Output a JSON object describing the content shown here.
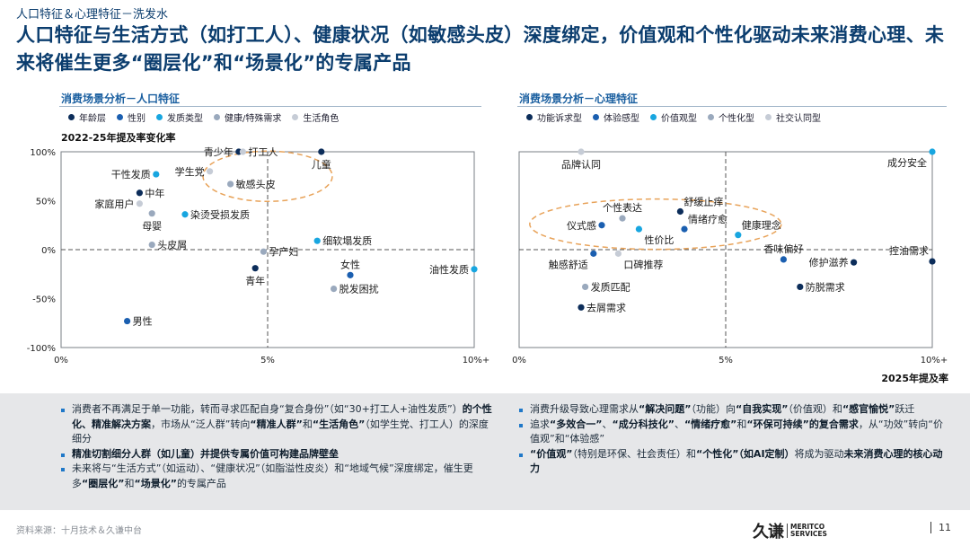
{
  "breadcrumb": "人口特征＆心理特征－洗发水",
  "title": "人口特征与生活方式（如打工人）、健康状况（如敏感头皮）深度绑定，价值观和个性化驱动未来消费心理、未来将催生更多“圈层化”和“场景化”的专属产品",
  "colors": {
    "navy": "#0c2d5a",
    "blue": "#1b5fb0",
    "cyan": "#18a6e0",
    "gray": "#9aa9bd",
    "lightgray": "#c6ccd6",
    "accent": "#e8a35a"
  },
  "chart_data": [
    {
      "type": "scatter",
      "panel_title": "消费场景分析－人口特征",
      "ylabel": "2022-25年提及率变化率",
      "xlabel": "",
      "xlim": [
        0,
        10
      ],
      "ylim": [
        -100,
        100
      ],
      "xticks": [
        "0%",
        "5%",
        "10%+"
      ],
      "yticks": [
        "100%",
        "50%",
        "0%",
        "-50%",
        "-100%"
      ],
      "reference_lines": {
        "x": 5,
        "y": 0
      },
      "legend": [
        {
          "name": "年龄层",
          "color": "navy"
        },
        {
          "name": "性别",
          "color": "blue"
        },
        {
          "name": "发质类型",
          "color": "cyan"
        },
        {
          "name": "健康/特殊需求",
          "color": "gray"
        },
        {
          "name": "生活角色",
          "color": "lightgray"
        }
      ],
      "points": [
        {
          "label": "青少年",
          "x": 4.3,
          "y": 100,
          "series": "年龄层",
          "pos": "left"
        },
        {
          "label": "打工人",
          "x": 4.4,
          "y": 100,
          "series": "生活角色",
          "pos": "right"
        },
        {
          "label": "儿童",
          "x": 6.3,
          "y": 100,
          "series": "年龄层",
          "pos": "below"
        },
        {
          "label": "学生党",
          "x": 3.6,
          "y": 80,
          "series": "生活角色",
          "pos": "left"
        },
        {
          "label": "干性发质",
          "x": 2.3,
          "y": 77,
          "series": "发质类型",
          "pos": "left"
        },
        {
          "label": "敏感头皮",
          "x": 4.1,
          "y": 67,
          "series": "健康/特殊需求",
          "pos": "right"
        },
        {
          "label": "中年",
          "x": 1.9,
          "y": 58,
          "series": "年龄层",
          "pos": "right"
        },
        {
          "label": "家庭用户",
          "x": 1.9,
          "y": 47,
          "series": "生活角色",
          "pos": "left"
        },
        {
          "label": "母婴",
          "x": 2.2,
          "y": 37,
          "series": "健康/特殊需求",
          "pos": "below"
        },
        {
          "label": "染烫受损发质",
          "x": 3.0,
          "y": 36,
          "series": "发质类型",
          "pos": "right"
        },
        {
          "label": "头皮屑",
          "x": 2.2,
          "y": 5,
          "series": "健康/特殊需求",
          "pos": "right"
        },
        {
          "label": "细软塌发质",
          "x": 6.2,
          "y": 9,
          "series": "发质类型",
          "pos": "right"
        },
        {
          "label": "孕产妇",
          "x": 4.9,
          "y": -2,
          "series": "健康/特殊需求",
          "pos": "right"
        },
        {
          "label": "女性",
          "x": 7.0,
          "y": -26,
          "series": "性别",
          "pos": "above"
        },
        {
          "label": "青年",
          "x": 4.7,
          "y": -19,
          "series": "年龄层",
          "pos": "below"
        },
        {
          "label": "油性发质",
          "x": 10.0,
          "y": -20,
          "series": "发质类型",
          "pos": "left"
        },
        {
          "label": "脱发困扰",
          "x": 6.6,
          "y": -40,
          "series": "健康/特殊需求",
          "pos": "right"
        },
        {
          "label": "男性",
          "x": 1.6,
          "y": -73,
          "series": "性别",
          "pos": "right"
        }
      ]
    },
    {
      "type": "scatter",
      "panel_title": "消费场景分析－心理特征",
      "ylabel": "",
      "xlabel": "2025年提及率",
      "xlim": [
        0,
        10
      ],
      "ylim": [
        -100,
        100
      ],
      "xticks": [
        "0%",
        "5%",
        "10%+"
      ],
      "reference_lines": {
        "x": 5,
        "y": 0
      },
      "legend": [
        {
          "name": "功能诉求型",
          "color": "navy"
        },
        {
          "name": "体验感型",
          "color": "blue"
        },
        {
          "name": "价值观型",
          "color": "cyan"
        },
        {
          "name": "个性化型",
          "color": "gray"
        },
        {
          "name": "社交认同型",
          "color": "lightgray"
        }
      ],
      "points": [
        {
          "label": "品牌认同",
          "x": 1.5,
          "y": 100,
          "series": "社交认同型",
          "pos": "below"
        },
        {
          "label": "成分安全",
          "x": 10.0,
          "y": 100,
          "series": "价值观型",
          "pos": "belowleft"
        },
        {
          "label": "个性表达",
          "x": 2.5,
          "y": 32,
          "series": "个性化型",
          "pos": "above"
        },
        {
          "label": "舒缓止痒",
          "x": 3.9,
          "y": 39,
          "series": "功能诉求型",
          "pos": "aboveright"
        },
        {
          "label": "仪式感",
          "x": 2.0,
          "y": 25,
          "series": "体验感型",
          "pos": "left"
        },
        {
          "label": "情绪疗愈",
          "x": 4.0,
          "y": 21,
          "series": "体验感型",
          "pos": "aboveright"
        },
        {
          "label": "性价比",
          "x": 2.9,
          "y": 21,
          "series": "价值观型",
          "pos": "belowright"
        },
        {
          "label": "健康理念",
          "x": 5.3,
          "y": 15,
          "series": "价值观型",
          "pos": "aboveright"
        },
        {
          "label": "香味偏好",
          "x": 6.4,
          "y": -10,
          "series": "体验感型",
          "pos": "above"
        },
        {
          "label": "控油需求",
          "x": 10.0,
          "y": -12,
          "series": "功能诉求型",
          "pos": "aboveleft"
        },
        {
          "label": "触感舒适",
          "x": 1.8,
          "y": -4,
          "series": "体验感型",
          "pos": "belowleft"
        },
        {
          "label": "口碑推荐",
          "x": 2.4,
          "y": -4,
          "series": "社交认同型",
          "pos": "belowright"
        },
        {
          "label": "修护滋养",
          "x": 8.1,
          "y": -13,
          "series": "功能诉求型",
          "pos": "left"
        },
        {
          "label": "防脱需求",
          "x": 6.8,
          "y": -38,
          "series": "功能诉求型",
          "pos": "right"
        },
        {
          "label": "发质匹配",
          "x": 1.6,
          "y": -38,
          "series": "个性化型",
          "pos": "right"
        },
        {
          "label": "去屑需求",
          "x": 1.5,
          "y": -59,
          "series": "功能诉求型",
          "pos": "right"
        }
      ]
    }
  ],
  "bullets_left": [
    [
      {
        "t": "消费者不再满足于单一功能，转而寻求匹配自身“复合身份”（如“30+打工人+油性发质”）"
      },
      {
        "t": "的个性化、精准解决方案",
        "b": true
      },
      {
        "t": "，市场从“泛人群”转向"
      },
      {
        "t": "“精准人群”",
        "b": true
      },
      {
        "t": "和"
      },
      {
        "t": "“生活角色”",
        "b": true
      },
      {
        "t": "（如学生党、打工人）的深度细分"
      }
    ],
    [
      {
        "t": "精准切割细分人群（如儿童）并提供专属价值可构建品牌壁垒",
        "b": true
      }
    ],
    [
      {
        "t": "未来将与“生活方式”（如运动）、“健康状况”（如脂溢性皮炎）和“地域气候”深度绑定，催生更多"
      },
      {
        "t": "“圈层化”",
        "b": true
      },
      {
        "t": "和"
      },
      {
        "t": "“场景化”",
        "b": true
      },
      {
        "t": "的专属产品"
      }
    ]
  ],
  "bullets_right": [
    [
      {
        "t": "消费升级导致心理需求从"
      },
      {
        "t": "“解决问题”",
        "b": true
      },
      {
        "t": "（功能）向"
      },
      {
        "t": "“自我实现”",
        "b": true
      },
      {
        "t": "（价值观）和"
      },
      {
        "t": "“感官愉悦”",
        "b": true
      },
      {
        "t": "跃迁"
      }
    ],
    [
      {
        "t": "追求"
      },
      {
        "t": "“多效合一”",
        "b": true
      },
      {
        "t": "、"
      },
      {
        "t": "“成分科技化”",
        "b": true
      },
      {
        "t": "、"
      },
      {
        "t": "“情绪疗愈”",
        "b": true
      },
      {
        "t": "和"
      },
      {
        "t": "“环保可持续”",
        "b": true
      },
      {
        "t": "的复合需求",
        "b2": true
      },
      {
        "t": "，从“功效”转向“价值观”和“体验感”"
      }
    ],
    [
      {
        "t": "“价值观”",
        "b": true
      },
      {
        "t": "（特别是环保、社会责任）和"
      },
      {
        "t": "“个性化”",
        "b": true
      },
      {
        "t": "（如AI定制）",
        "b": true
      },
      {
        "t": "将成为驱动"
      },
      {
        "t": "未来消费心理的核心动力",
        "b": true
      }
    ]
  ],
  "footer": {
    "source": "资料来源：十月技术＆久谦中台",
    "logo_cn": "久谦",
    "logo_en_1": "MERITCO",
    "logo_en_2": "SERVICES",
    "page": "11"
  }
}
